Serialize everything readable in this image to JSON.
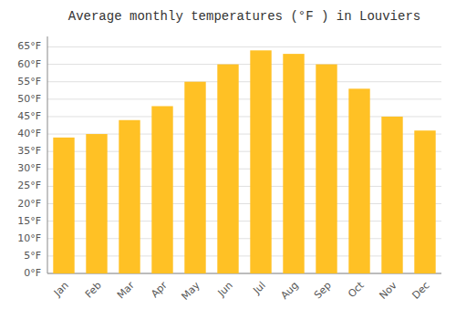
{
  "chart_data": {
    "type": "bar",
    "title": "Average monthly temperatures (°F ) in Louviers",
    "categories": [
      "Jan",
      "Feb",
      "Mar",
      "Apr",
      "May",
      "Jun",
      "Jul",
      "Aug",
      "Sep",
      "Oct",
      "Nov",
      "Dec"
    ],
    "values": [
      39,
      40,
      44,
      48,
      55,
      60,
      64,
      63,
      60,
      53,
      45,
      41
    ],
    "color": "#FFC125",
    "ylim": [
      0,
      68
    ],
    "yticks": [
      {
        "value": 0,
        "label": "0°F"
      },
      {
        "value": 5,
        "label": "5°F"
      },
      {
        "value": 10,
        "label": "10°F"
      },
      {
        "value": 15,
        "label": "15°F"
      },
      {
        "value": 20,
        "label": "20°F"
      },
      {
        "value": 25,
        "label": "25°F"
      },
      {
        "value": 30,
        "label": "30°F"
      },
      {
        "value": 35,
        "label": "35°F"
      },
      {
        "value": 40,
        "label": "40°F"
      },
      {
        "value": 45,
        "label": "45°F"
      },
      {
        "value": 50,
        "label": "50°F"
      },
      {
        "value": 55,
        "label": "55°F"
      },
      {
        "value": 60,
        "label": "60°F"
      },
      {
        "value": 65,
        "label": "65°F"
      }
    ],
    "grid": true
  }
}
